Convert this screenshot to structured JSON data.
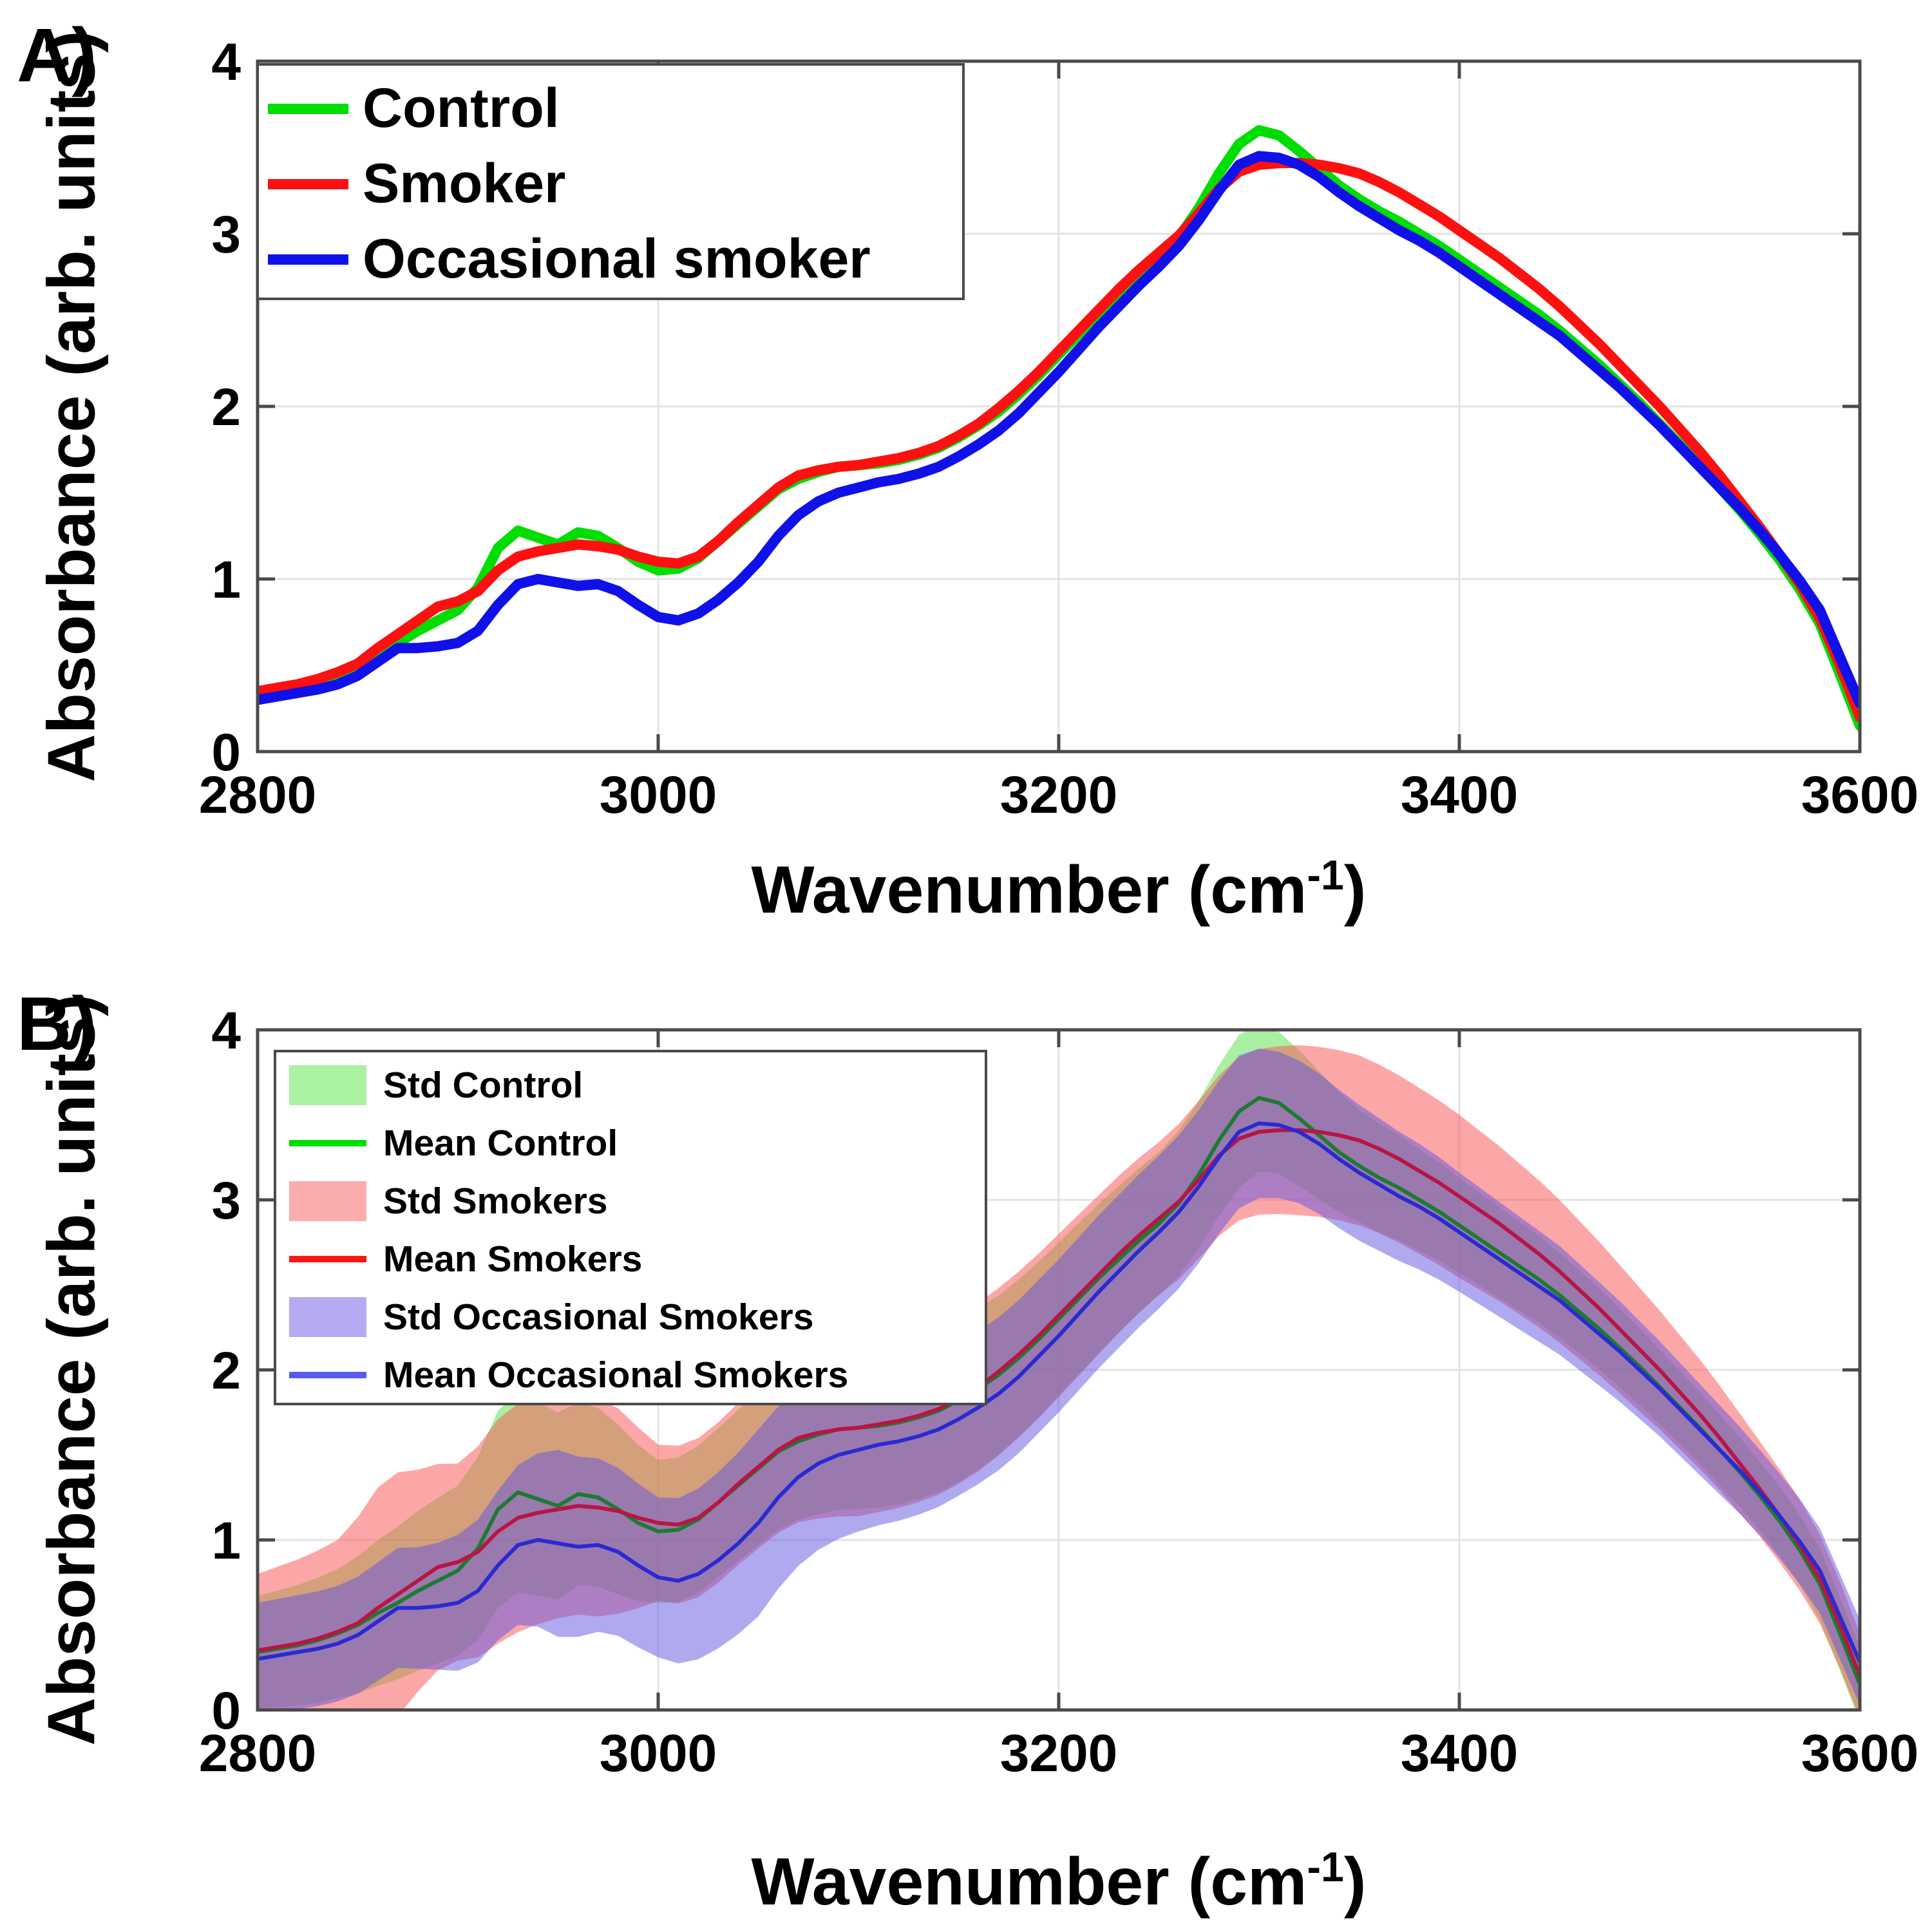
{
  "ui": {
    "background_color": "#ffffff",
    "panel_a_label": "A)",
    "panel_b_label": "B)",
    "axis_color": "#4a4a4a",
    "grid_color": "#e3e3e3",
    "xlabel": {
      "pre": "Wavenumber (cm",
      "sup": "-1",
      "post": ")"
    },
    "ylabel": "Absorbance (arb. units)"
  },
  "chart_data": [
    {
      "type": "line",
      "panel": "A",
      "title": "",
      "xlabel": "Wavenumber (cm^-1)",
      "ylabel": "Absorbance (arb. units)",
      "xlim": [
        2800,
        3600
      ],
      "ylim": [
        0,
        4
      ],
      "xticks": [
        2800,
        3000,
        3200,
        3400,
        3600
      ],
      "yticks": [
        0,
        1,
        2,
        3,
        4
      ],
      "grid": true,
      "legend_position": "upper-left",
      "x": {
        "start": 2800,
        "step": 10,
        "count": 81
      },
      "series": [
        {
          "name": "Control",
          "color": "#00dd00",
          "line_width": 16,
          "values": [
            0.34,
            0.36,
            0.38,
            0.41,
            0.45,
            0.5,
            0.57,
            0.63,
            0.7,
            0.76,
            0.82,
            0.95,
            1.18,
            1.28,
            1.24,
            1.2,
            1.27,
            1.25,
            1.18,
            1.1,
            1.05,
            1.06,
            1.12,
            1.22,
            1.32,
            1.42,
            1.52,
            1.58,
            1.62,
            1.65,
            1.66,
            1.67,
            1.69,
            1.72,
            1.76,
            1.82,
            1.89,
            1.97,
            2.07,
            2.18,
            2.3,
            2.42,
            2.54,
            2.65,
            2.76,
            2.86,
            2.98,
            3.15,
            3.35,
            3.52,
            3.6,
            3.57,
            3.48,
            3.38,
            3.28,
            3.2,
            3.13,
            3.07,
            3.0,
            2.93,
            2.85,
            2.77,
            2.69,
            2.61,
            2.53,
            2.44,
            2.34,
            2.24,
            2.13,
            2.02,
            1.9,
            1.78,
            1.66,
            1.53,
            1.4,
            1.26,
            1.11,
            0.94,
            0.74,
            0.45,
            0.15
          ]
        },
        {
          "name": "Smoker",
          "color": "#ff1010",
          "line_width": 16,
          "values": [
            0.35,
            0.37,
            0.39,
            0.42,
            0.46,
            0.51,
            0.6,
            0.68,
            0.76,
            0.84,
            0.87,
            0.93,
            1.05,
            1.13,
            1.16,
            1.18,
            1.2,
            1.19,
            1.17,
            1.13,
            1.1,
            1.09,
            1.13,
            1.22,
            1.33,
            1.43,
            1.53,
            1.6,
            1.63,
            1.65,
            1.66,
            1.68,
            1.7,
            1.73,
            1.77,
            1.83,
            1.9,
            1.99,
            2.09,
            2.2,
            2.32,
            2.44,
            2.56,
            2.68,
            2.79,
            2.89,
            2.99,
            3.12,
            3.26,
            3.36,
            3.4,
            3.41,
            3.41,
            3.4,
            3.38,
            3.35,
            3.3,
            3.24,
            3.17,
            3.1,
            3.02,
            2.94,
            2.86,
            2.77,
            2.68,
            2.58,
            2.47,
            2.36,
            2.24,
            2.12,
            2.0,
            1.87,
            1.74,
            1.6,
            1.45,
            1.3,
            1.14,
            0.97,
            0.77,
            0.5,
            0.2
          ]
        },
        {
          "name": "Occasional smoker",
          "color": "#1010e8",
          "line_width": 16,
          "values": [
            0.3,
            0.32,
            0.34,
            0.36,
            0.39,
            0.44,
            0.52,
            0.6,
            0.6,
            0.61,
            0.63,
            0.7,
            0.85,
            0.97,
            1.0,
            0.98,
            0.96,
            0.97,
            0.93,
            0.85,
            0.78,
            0.76,
            0.8,
            0.88,
            0.98,
            1.1,
            1.25,
            1.37,
            1.45,
            1.5,
            1.53,
            1.56,
            1.58,
            1.61,
            1.65,
            1.71,
            1.78,
            1.86,
            1.96,
            2.08,
            2.2,
            2.33,
            2.46,
            2.58,
            2.7,
            2.81,
            2.93,
            3.08,
            3.25,
            3.4,
            3.45,
            3.44,
            3.4,
            3.33,
            3.24,
            3.16,
            3.09,
            3.02,
            2.96,
            2.89,
            2.81,
            2.73,
            2.65,
            2.57,
            2.49,
            2.41,
            2.31,
            2.21,
            2.11,
            2.0,
            1.89,
            1.77,
            1.65,
            1.53,
            1.41,
            1.28,
            1.14,
            0.99,
            0.82,
            0.55,
            0.28
          ]
        }
      ]
    },
    {
      "type": "area+line",
      "panel": "B",
      "title": "",
      "xlabel": "Wavenumber (cm^-1)",
      "ylabel": "Absorbance (arb. units)",
      "xlim": [
        2800,
        3600
      ],
      "ylim": [
        0,
        4
      ],
      "xticks": [
        2800,
        3000,
        3200,
        3400,
        3600
      ],
      "yticks": [
        0,
        1,
        2,
        3,
        4
      ],
      "grid": true,
      "legend_position": "upper-left",
      "x": {
        "start": 2800,
        "step": 10,
        "count": 81
      },
      "std_x": [
        2800,
        2840,
        2865,
        2885,
        2900,
        2925,
        2950,
        2975,
        3000,
        3050,
        3100,
        3150,
        3200,
        3250,
        3290,
        3320,
        3350,
        3400,
        3450,
        3500,
        3550,
        3600
      ],
      "groups": [
        {
          "std_label": "Std Control",
          "mean_label": "Mean Control",
          "band_fill": "rgba(88,224,72,0.50)",
          "band_legend_color": "#aaf2a2",
          "mean_plot_color": "#1e7a32",
          "mean_legend_color": "#00dd00",
          "mean": [
            0.34,
            0.36,
            0.38,
            0.41,
            0.45,
            0.5,
            0.57,
            0.63,
            0.7,
            0.76,
            0.82,
            0.95,
            1.18,
            1.28,
            1.24,
            1.2,
            1.27,
            1.25,
            1.18,
            1.1,
            1.05,
            1.06,
            1.12,
            1.22,
            1.32,
            1.42,
            1.52,
            1.58,
            1.62,
            1.65,
            1.66,
            1.67,
            1.69,
            1.72,
            1.76,
            1.82,
            1.89,
            1.97,
            2.07,
            2.18,
            2.3,
            2.42,
            2.54,
            2.65,
            2.76,
            2.86,
            2.98,
            3.15,
            3.35,
            3.52,
            3.6,
            3.57,
            3.48,
            3.38,
            3.28,
            3.2,
            3.13,
            3.07,
            3.0,
            2.93,
            2.85,
            2.77,
            2.69,
            2.61,
            2.53,
            2.44,
            2.34,
            2.24,
            2.13,
            2.02,
            1.9,
            1.78,
            1.66,
            1.53,
            1.4,
            1.26,
            1.11,
            0.94,
            0.74,
            0.45,
            0.15
          ],
          "std": [
            0.33,
            0.38,
            0.44,
            0.48,
            0.5,
            0.6,
            0.55,
            0.52,
            0.42,
            0.45,
            0.48,
            0.48,
            0.45,
            0.42,
            0.45,
            0.4,
            0.33,
            0.28,
            0.25,
            0.22,
            0.2,
            0.22
          ]
        },
        {
          "std_label": "Std Smokers",
          "mean_label": "Mean Smokers",
          "band_fill": "rgba(250,86,86,0.52)",
          "band_legend_color": "#fbadad",
          "mean_plot_color": "#b81545",
          "mean_legend_color": "#ff1414",
          "mean": [
            0.35,
            0.37,
            0.39,
            0.42,
            0.46,
            0.51,
            0.6,
            0.68,
            0.76,
            0.84,
            0.87,
            0.93,
            1.05,
            1.13,
            1.16,
            1.18,
            1.2,
            1.19,
            1.17,
            1.13,
            1.1,
            1.09,
            1.13,
            1.22,
            1.33,
            1.43,
            1.53,
            1.6,
            1.63,
            1.65,
            1.66,
            1.68,
            1.7,
            1.73,
            1.77,
            1.83,
            1.9,
            1.99,
            2.09,
            2.2,
            2.32,
            2.44,
            2.56,
            2.68,
            2.79,
            2.89,
            2.99,
            3.12,
            3.26,
            3.36,
            3.4,
            3.41,
            3.41,
            3.4,
            3.38,
            3.35,
            3.3,
            3.24,
            3.17,
            3.1,
            3.02,
            2.94,
            2.86,
            2.77,
            2.68,
            2.58,
            2.47,
            2.36,
            2.24,
            2.12,
            2.0,
            1.87,
            1.74,
            1.6,
            1.45,
            1.3,
            1.14,
            0.97,
            0.77,
            0.5,
            0.2
          ],
          "std": [
            0.45,
            0.54,
            0.75,
            0.62,
            0.58,
            0.68,
            0.64,
            0.64,
            0.46,
            0.48,
            0.52,
            0.5,
            0.48,
            0.45,
            0.48,
            0.5,
            0.5,
            0.48,
            0.42,
            0.35,
            0.28,
            0.25
          ]
        },
        {
          "std_label": "Std Occasional Smokers",
          "mean_label": "Mean Occasional Smokers",
          "band_fill": "rgba(96,86,226,0.50)",
          "band_legend_color": "#b3aaf2",
          "mean_plot_color": "#2a2ad2",
          "mean_legend_color": "#5a5af0",
          "mean": [
            0.3,
            0.32,
            0.34,
            0.36,
            0.39,
            0.44,
            0.52,
            0.6,
            0.6,
            0.61,
            0.63,
            0.7,
            0.85,
            0.97,
            1.0,
            0.98,
            0.96,
            0.97,
            0.93,
            0.85,
            0.78,
            0.76,
            0.8,
            0.88,
            0.98,
            1.1,
            1.25,
            1.37,
            1.45,
            1.5,
            1.53,
            1.56,
            1.58,
            1.61,
            1.65,
            1.71,
            1.78,
            1.86,
            1.96,
            2.08,
            2.2,
            2.33,
            2.46,
            2.58,
            2.7,
            2.81,
            2.93,
            3.08,
            3.25,
            3.4,
            3.45,
            3.44,
            3.4,
            3.33,
            3.24,
            3.16,
            3.09,
            3.02,
            2.96,
            2.89,
            2.81,
            2.73,
            2.65,
            2.57,
            2.49,
            2.41,
            2.31,
            2.21,
            2.11,
            2.0,
            1.89,
            1.77,
            1.65,
            1.53,
            1.41,
            1.28,
            1.14,
            0.99,
            0.82,
            0.55,
            0.28
          ],
          "std": [
            0.33,
            0.34,
            0.35,
            0.36,
            0.4,
            0.45,
            0.55,
            0.5,
            0.47,
            0.55,
            0.48,
            0.45,
            0.45,
            0.45,
            0.45,
            0.42,
            0.4,
            0.35,
            0.32,
            0.28,
            0.25,
            0.25
          ]
        }
      ]
    }
  ]
}
